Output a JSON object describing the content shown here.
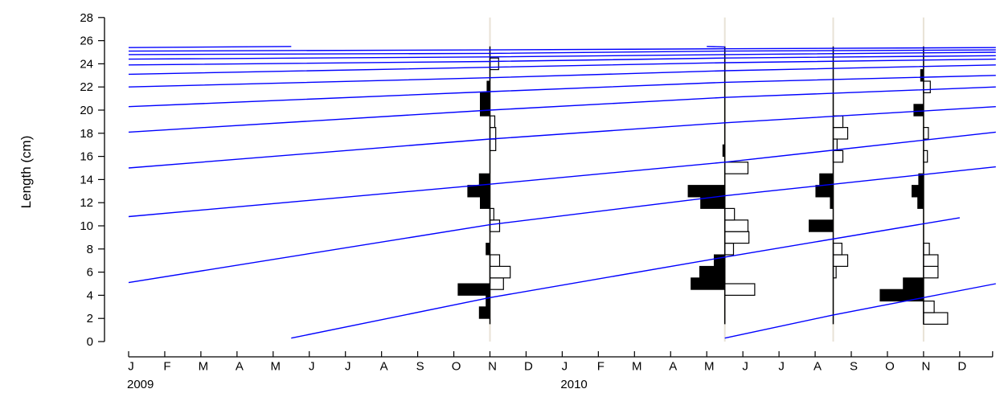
{
  "chart_data": {
    "type": "bar",
    "ylabel": "Length (cm)",
    "ylim": [
      0,
      28
    ],
    "yticks": [
      0,
      2,
      4,
      6,
      8,
      10,
      12,
      14,
      16,
      18,
      20,
      22,
      24,
      26,
      28
    ],
    "xrange_months": [
      "2009-01",
      "2010-12"
    ],
    "month_labels": [
      "J",
      "F",
      "M",
      "A",
      "M",
      "J",
      "J",
      "A",
      "S",
      "O",
      "N",
      "D",
      "J",
      "F",
      "M",
      "A",
      "M",
      "J",
      "J",
      "A",
      "S",
      "O",
      "N",
      "D"
    ],
    "year_labels": [
      "2009",
      "2010"
    ],
    "growth_curve_color": "#0000ff",
    "background_vline_color": "#e8e2d6",
    "histogram_bin_width": 1,
    "samples": [
      {
        "month_index": 10,
        "bins_negative": [
          {
            "y": 2.5,
            "v": 1.1
          },
          {
            "y": 3.5,
            "v": 0.4
          },
          {
            "y": 4.5,
            "v": 3.3
          },
          {
            "y": 8.0,
            "v": 0.4
          },
          {
            "y": 12.0,
            "v": 1.0
          },
          {
            "y": 13.0,
            "v": 2.3
          },
          {
            "y": 14.0,
            "v": 1.1
          },
          {
            "y": 20.0,
            "v": 1.0
          },
          {
            "y": 21.0,
            "v": 1.0
          },
          {
            "y": 22.0,
            "v": 0.3
          }
        ],
        "bins_positive": [
          {
            "y": 5.0,
            "v": 1.4
          },
          {
            "y": 6.0,
            "v": 2.1
          },
          {
            "y": 7.0,
            "v": 1.0
          },
          {
            "y": 10.0,
            "v": 1.0
          },
          {
            "y": 11.0,
            "v": 0.4
          },
          {
            "y": 17.0,
            "v": 0.6
          },
          {
            "y": 18.0,
            "v": 0.6
          },
          {
            "y": 19.0,
            "v": 0.5
          },
          {
            "y": 24.0,
            "v": 0.9
          }
        ]
      },
      {
        "month_index": 16.5,
        "bins_negative": [
          {
            "y": 5.0,
            "v": 3.5
          },
          {
            "y": 6.0,
            "v": 2.6
          },
          {
            "y": 7.0,
            "v": 1.1
          },
          {
            "y": 12.0,
            "v": 2.5
          },
          {
            "y": 13.0,
            "v": 3.8
          },
          {
            "y": 16.5,
            "v": 0.2
          }
        ],
        "bins_positive": [
          {
            "y": 4.5,
            "v": 3.1
          },
          {
            "y": 8.0,
            "v": 0.9
          },
          {
            "y": 9.0,
            "v": 2.5
          },
          {
            "y": 10.0,
            "v": 2.4
          },
          {
            "y": 11.0,
            "v": 1.0
          },
          {
            "y": 15.0,
            "v": 2.4
          }
        ]
      },
      {
        "month_index": 19.5,
        "bins_negative": [
          {
            "y": 10.0,
            "v": 2.5
          },
          {
            "y": 12.0,
            "v": 0.3
          },
          {
            "y": 13.0,
            "v": 1.8
          },
          {
            "y": 14.0,
            "v": 1.4
          }
        ],
        "bins_positive": [
          {
            "y": 6.0,
            "v": 0.3
          },
          {
            "y": 7.0,
            "v": 1.5
          },
          {
            "y": 8.0,
            "v": 0.9
          },
          {
            "y": 16.0,
            "v": 1.0
          },
          {
            "y": 17.0,
            "v": 0.4
          },
          {
            "y": 18.0,
            "v": 1.5
          },
          {
            "y": 19.0,
            "v": 1.0
          }
        ]
      },
      {
        "month_index": 22,
        "bins_negative": [
          {
            "y": 4.0,
            "v": 4.5
          },
          {
            "y": 5.0,
            "v": 2.1
          },
          {
            "y": 12.0,
            "v": 0.6
          },
          {
            "y": 13.0,
            "v": 1.2
          },
          {
            "y": 14.0,
            "v": 0.5
          },
          {
            "y": 20.0,
            "v": 1.0
          },
          {
            "y": 23.0,
            "v": 0.3
          }
        ],
        "bins_positive": [
          {
            "y": 2.0,
            "v": 2.5
          },
          {
            "y": 3.0,
            "v": 1.1
          },
          {
            "y": 6.0,
            "v": 1.5
          },
          {
            "y": 7.0,
            "v": 1.5
          },
          {
            "y": 8.0,
            "v": 0.6
          },
          {
            "y": 16.0,
            "v": 0.4
          },
          {
            "y": 18.0,
            "v": 0.5
          },
          {
            "y": 22.0,
            "v": 0.7
          }
        ]
      }
    ],
    "growth_curves": [
      {
        "name": "",
        "points": [
          [
            4.5,
            0.3
          ],
          [
            10.0,
            3.8
          ],
          [
            16.5,
            7.3
          ],
          [
            23.0,
            10.7
          ]
        ]
      },
      {
        "name": "",
        "points": [
          [
            16.5,
            0.3
          ],
          [
            19.5,
            2.3
          ],
          [
            24.0,
            5.0
          ]
        ]
      },
      {
        "name": "",
        "points": [
          [
            0.0,
            5.1
          ],
          [
            10.0,
            10.1
          ],
          [
            16.5,
            12.6
          ],
          [
            24.0,
            15.1
          ]
        ]
      },
      {
        "name": "",
        "points": [
          [
            0.0,
            10.8
          ],
          [
            10.0,
            13.6
          ],
          [
            16.5,
            15.5
          ],
          [
            24.0,
            18.1
          ]
        ]
      },
      {
        "name": "",
        "points": [
          [
            0.0,
            15.0
          ],
          [
            10.0,
            17.5
          ],
          [
            16.5,
            18.9
          ],
          [
            24.0,
            20.3
          ]
        ]
      },
      {
        "name": "",
        "points": [
          [
            0.0,
            18.1
          ],
          [
            10.0,
            20.0
          ],
          [
            16.5,
            21.1
          ],
          [
            24.0,
            22.0
          ]
        ]
      },
      {
        "name": "",
        "points": [
          [
            0.0,
            20.3
          ],
          [
            10.0,
            21.6
          ],
          [
            16.5,
            22.4
          ],
          [
            24.0,
            23.0
          ]
        ]
      },
      {
        "name": "",
        "points": [
          [
            0.0,
            22.0
          ],
          [
            10.0,
            22.8
          ],
          [
            16.5,
            23.4
          ],
          [
            24.0,
            23.9
          ]
        ]
      },
      {
        "name": "",
        "points": [
          [
            0.0,
            23.1
          ],
          [
            10.0,
            23.7
          ],
          [
            16.5,
            24.1
          ],
          [
            24.0,
            24.4
          ]
        ]
      },
      {
        "name": "",
        "points": [
          [
            0.0,
            23.9
          ],
          [
            10.0,
            24.2
          ],
          [
            16.5,
            24.5
          ],
          [
            24.0,
            24.7
          ]
        ]
      },
      {
        "name": "",
        "points": [
          [
            0.0,
            24.4
          ],
          [
            10.0,
            24.6
          ],
          [
            16.5,
            24.8
          ],
          [
            24.0,
            25.0
          ]
        ]
      },
      {
        "name": "",
        "points": [
          [
            0.0,
            24.8
          ],
          [
            10.0,
            24.9
          ],
          [
            16.5,
            25.1
          ],
          [
            24.0,
            25.2
          ]
        ]
      },
      {
        "name": "",
        "points": [
          [
            0.0,
            25.1
          ],
          [
            10.0,
            25.2
          ],
          [
            16.5,
            25.3
          ],
          [
            24.0,
            25.4
          ]
        ]
      },
      {
        "name": "",
        "points": [
          [
            0.0,
            25.4
          ],
          [
            4.5,
            25.5
          ]
        ]
      },
      {
        "name": "",
        "points": [
          [
            16.0,
            25.5
          ],
          [
            16.5,
            25.45
          ]
        ]
      }
    ]
  }
}
